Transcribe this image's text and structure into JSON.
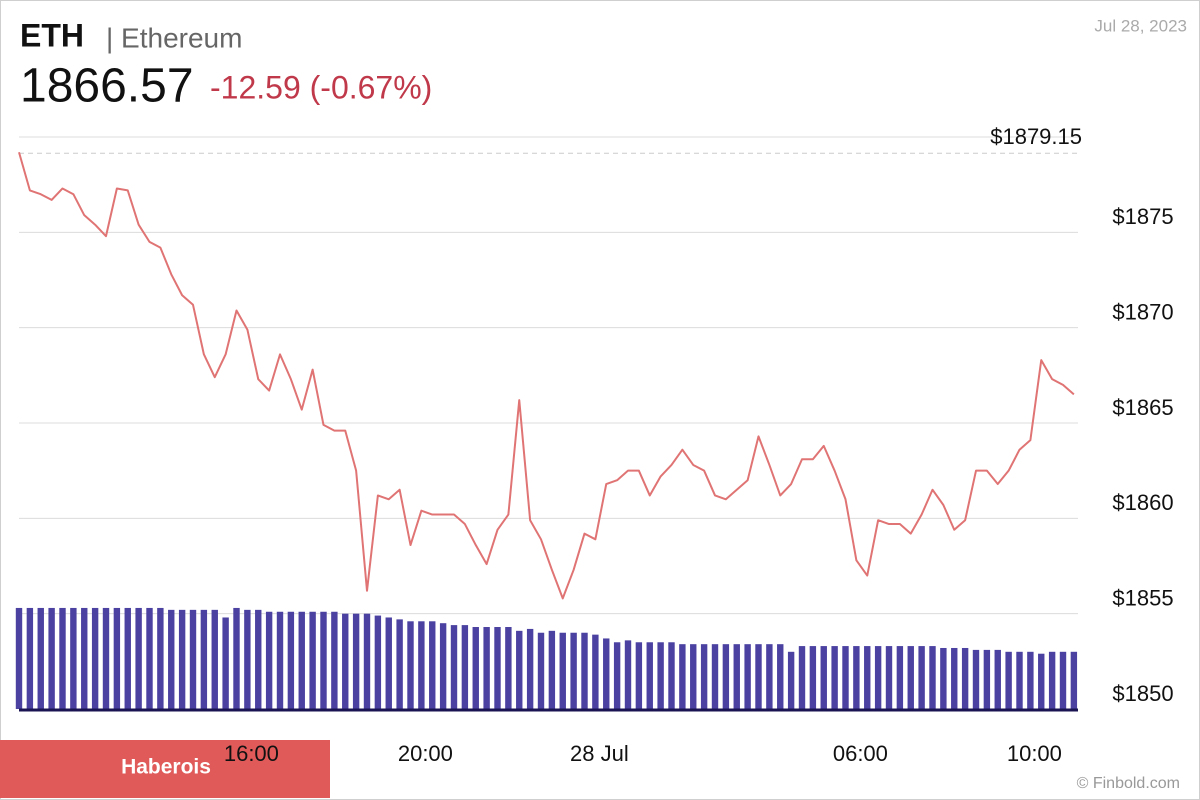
{
  "header": {
    "symbol": "ETH",
    "name": "| Ethereum",
    "price": "1866.57",
    "change": "-12.59 (-0.67%)",
    "date": "Jul 28, 2023"
  },
  "badge": "Haberois",
  "credit": "© Finbold.com",
  "chart_data": {
    "type": "line",
    "color": "#e07474",
    "categories": [
      null,
      null,
      null,
      null,
      null,
      null,
      null,
      null,
      null,
      null,
      null,
      null,
      null,
      null,
      null,
      null,
      null,
      null,
      null,
      null,
      null,
      "16:00",
      null,
      null,
      null,
      null,
      null,
      null,
      null,
      null,
      null,
      null,
      null,
      null,
      null,
      null,
      null,
      "20:00",
      null,
      null,
      null,
      null,
      null,
      null,
      null,
      null,
      null,
      null,
      null,
      null,
      null,
      null,
      null,
      "28 Jul",
      null,
      null,
      null,
      null,
      null,
      null,
      null,
      null,
      null,
      null,
      null,
      null,
      null,
      null,
      null,
      null,
      null,
      null,
      null,
      null,
      null,
      null,
      null,
      "06:00",
      null,
      null,
      null,
      null,
      null,
      null,
      null,
      null,
      null,
      null,
      null,
      null,
      null,
      null,
      null,
      "10:00",
      null,
      null,
      null,
      null
    ],
    "values": [
      1879.2,
      1877.2,
      1877.0,
      1876.7,
      1877.3,
      1877.0,
      1875.9,
      1875.4,
      1874.8,
      1877.3,
      1877.2,
      1875.4,
      1874.5,
      1874.2,
      1872.8,
      1871.7,
      1871.2,
      1868.6,
      1867.4,
      1868.6,
      1870.9,
      1869.9,
      1867.3,
      1866.7,
      1868.6,
      1867.3,
      1865.7,
      1867.8,
      1864.9,
      1864.6,
      1864.6,
      1862.5,
      1856.2,
      1861.2,
      1861.0,
      1861.5,
      1858.6,
      1860.4,
      1860.2,
      1860.2,
      1860.2,
      1859.7,
      1858.6,
      1857.6,
      1859.4,
      1860.2,
      1866.2,
      1859.9,
      1858.9,
      1857.3,
      1855.8,
      1857.3,
      1859.2,
      1858.9,
      1861.8,
      1862.0,
      1862.5,
      1862.5,
      1861.2,
      1862.2,
      1862.8,
      1863.6,
      1862.8,
      1862.5,
      1861.2,
      1861.0,
      1861.5,
      1862.0,
      1864.3,
      1862.8,
      1861.2,
      1861.8,
      1863.1,
      1863.1,
      1863.8,
      1862.5,
      1861.0,
      1857.8,
      1857.0,
      1859.9,
      1859.7,
      1859.7,
      1859.2,
      1860.2,
      1861.5,
      1860.7,
      1859.4,
      1859.9,
      1862.5,
      1862.5,
      1861.8,
      1862.5,
      1863.6,
      1864.1,
      1868.3,
      1867.3,
      1867.0,
      1866.5
    ],
    "volume": {
      "color": "#4a41a0",
      "values": [
        1855.3,
        1855.3,
        1855.3,
        1855.3,
        1855.3,
        1855.3,
        1855.3,
        1855.3,
        1855.3,
        1855.3,
        1855.3,
        1855.3,
        1855.3,
        1855.3,
        1855.2,
        1855.2,
        1855.2,
        1855.2,
        1855.2,
        1854.8,
        1855.3,
        1855.2,
        1855.2,
        1855.1,
        1855.1,
        1855.1,
        1855.1,
        1855.1,
        1855.1,
        1855.1,
        1855.0,
        1855.0,
        1855.0,
        1854.9,
        1854.8,
        1854.7,
        1854.6,
        1854.6,
        1854.6,
        1854.5,
        1854.4,
        1854.4,
        1854.3,
        1854.3,
        1854.3,
        1854.3,
        1854.1,
        1854.2,
        1854.0,
        1854.1,
        1854.0,
        1854.0,
        1854.0,
        1853.9,
        1853.7,
        1853.5,
        1853.6,
        1853.5,
        1853.5,
        1853.5,
        1853.5,
        1853.4,
        1853.4,
        1853.4,
        1853.4,
        1853.4,
        1853.4,
        1853.4,
        1853.4,
        1853.4,
        1853.4,
        1853.0,
        1853.3,
        1853.3,
        1853.3,
        1853.3,
        1853.3,
        1853.3,
        1853.3,
        1853.3,
        1853.3,
        1853.3,
        1853.3,
        1853.3,
        1853.3,
        1853.2,
        1853.2,
        1853.2,
        1853.1,
        1853.1,
        1853.1,
        1853.0,
        1853.0,
        1853.0,
        1852.9,
        1853.0,
        1853.0,
        1853.0
      ]
    },
    "ylim": [
      1850,
      1880
    ],
    "yticks": [
      {
        "value": 1850,
        "label": "$1850"
      },
      {
        "value": 1855,
        "label": "$1855"
      },
      {
        "value": 1860,
        "label": "$1860"
      },
      {
        "value": 1865,
        "label": "$1865"
      },
      {
        "value": 1870,
        "label": "$1870"
      },
      {
        "value": 1875,
        "label": "$1875"
      }
    ],
    "reference": {
      "value": 1879.15,
      "label": "$1879.15"
    },
    "grid": true
  }
}
